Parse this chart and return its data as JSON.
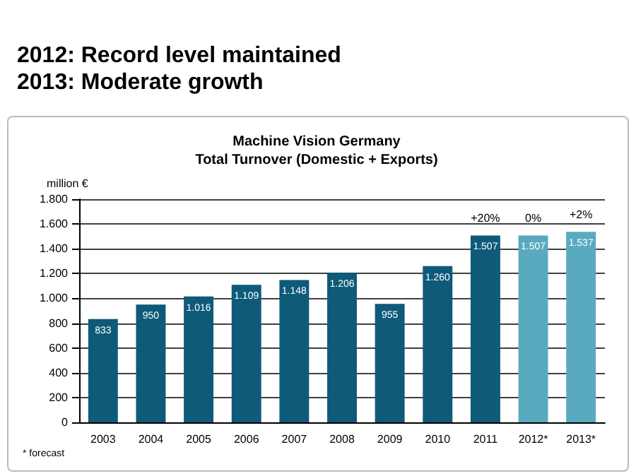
{
  "chart_data": {
    "type": "bar",
    "title": "2012: Record level maintained\n2013: Moderate growth",
    "subtitle": "Machine Vision Germany\nTotal Turnover (Domestic + Exports)",
    "ylabel": "million €",
    "categories": [
      "2003",
      "2004",
      "2005",
      "2006",
      "2007",
      "2008",
      "2009",
      "2010",
      "2011",
      "2012*",
      "2013*"
    ],
    "values": [
      833,
      950,
      1016,
      1109,
      1148,
      1206,
      955,
      1260,
      1507,
      1507,
      1537
    ],
    "value_labels": [
      "833",
      "950",
      "1.016",
      "1.109",
      "1.148",
      "1.206",
      "955",
      "1.260",
      "1.507",
      "1.507",
      "1.537"
    ],
    "colors": [
      "#0e5a78",
      "#0e5a78",
      "#0e5a78",
      "#0e5a78",
      "#0e5a78",
      "#0e5a78",
      "#0e5a78",
      "#0e5a78",
      "#0e5a78",
      "#5aaabf",
      "#5aaabf"
    ],
    "ylim": [
      0,
      1800
    ],
    "yticks": [
      0,
      200,
      400,
      600,
      800,
      {
        "value": 1000,
        "label": "1.000"
      },
      {
        "value": 1200,
        "label": "1.200"
      },
      {
        "value": 1400,
        "label": "1.400"
      },
      {
        "value": 1600,
        "label": "1.600"
      },
      {
        "value": 1800,
        "label": "1.800"
      }
    ],
    "grid": "y",
    "annotations": [
      {
        "text": "+20%",
        "x": "2011",
        "y": 1507
      },
      {
        "text": "0%",
        "x": "2012*",
        "y": 1507
      },
      {
        "text": "+2%",
        "x": "2013*",
        "y": 1537
      },
      "* forecast"
    ]
  }
}
